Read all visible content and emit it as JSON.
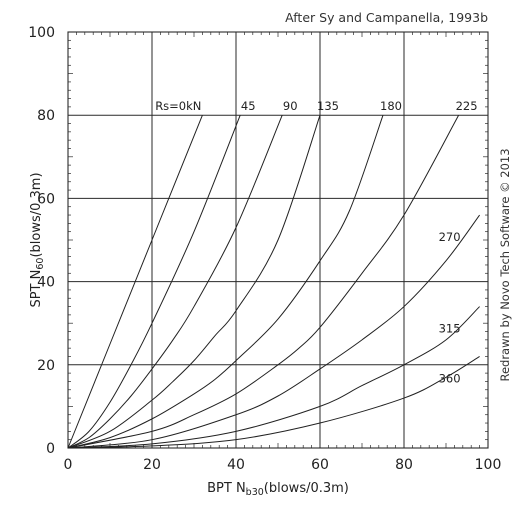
{
  "chart_data": {
    "type": "line",
    "attribution": "After Sy and Campanella, 1993b",
    "credit": "Redrawn by Novo Tech Software © 2013",
    "xlabel": {
      "main": "BPT N",
      "sub": "b30",
      "tail": "(blows/0.3m)"
    },
    "ylabel": {
      "main": "SPT N",
      "sub": "60",
      "tail": "(blows/0.3m)"
    },
    "xlim": [
      0,
      100
    ],
    "ylim": [
      0,
      100
    ],
    "x_ticks": [
      "0",
      "20",
      "40",
      "60",
      "80",
      "100"
    ],
    "y_ticks": [
      "0",
      "20",
      "40",
      "60",
      "80",
      "100"
    ],
    "grid": true,
    "line_color": "#222222",
    "grid_color": "#2a2a2a",
    "series": [
      {
        "name": "Rs=0kN",
        "x": [
          0,
          10,
          20,
          32
        ],
        "y": [
          0,
          25,
          50,
          80
        ]
      },
      {
        "name": "45",
        "x": [
          0,
          5,
          10,
          15,
          20,
          30,
          41
        ],
        "y": [
          0,
          4,
          11,
          20,
          30,
          52,
          80
        ]
      },
      {
        "name": "90",
        "x": [
          0,
          5,
          10,
          15,
          20,
          25,
          30,
          40,
          51
        ],
        "y": [
          0,
          2.5,
          7,
          12.5,
          19,
          26,
          34,
          53,
          80
        ]
      },
      {
        "name": "135",
        "x": [
          0,
          10,
          20,
          25,
          30,
          35,
          40,
          50,
          60
        ],
        "y": [
          0,
          4,
          11.5,
          16,
          21,
          27,
          33,
          50,
          80
        ]
      },
      {
        "name": "180",
        "x": [
          0,
          10,
          20,
          30,
          35,
          40,
          50,
          60,
          67,
          75
        ],
        "y": [
          0,
          2.5,
          7,
          13,
          16.5,
          21,
          31,
          45,
          57,
          80
        ]
      },
      {
        "name": "225",
        "x": [
          0,
          20,
          30,
          40,
          50,
          55,
          60,
          70,
          80,
          93
        ],
        "y": [
          0,
          4,
          8,
          13,
          20,
          24,
          29,
          42,
          56,
          80
        ]
      },
      {
        "name": "270",
        "x": [
          0,
          20,
          40,
          50,
          60,
          70,
          80,
          90,
          98
        ],
        "y": [
          0,
          2,
          8,
          12.5,
          19,
          26,
          34,
          45,
          56
        ]
      },
      {
        "name": "315",
        "x": [
          0,
          20,
          40,
          60,
          70,
          80,
          90,
          98
        ],
        "y": [
          0,
          1,
          4,
          10,
          15,
          20,
          26,
          34
        ]
      },
      {
        "name": "360",
        "x": [
          0,
          20,
          40,
          60,
          80,
          90,
          98
        ],
        "y": [
          0,
          0.5,
          2,
          6,
          12,
          17,
          22
        ]
      }
    ]
  }
}
